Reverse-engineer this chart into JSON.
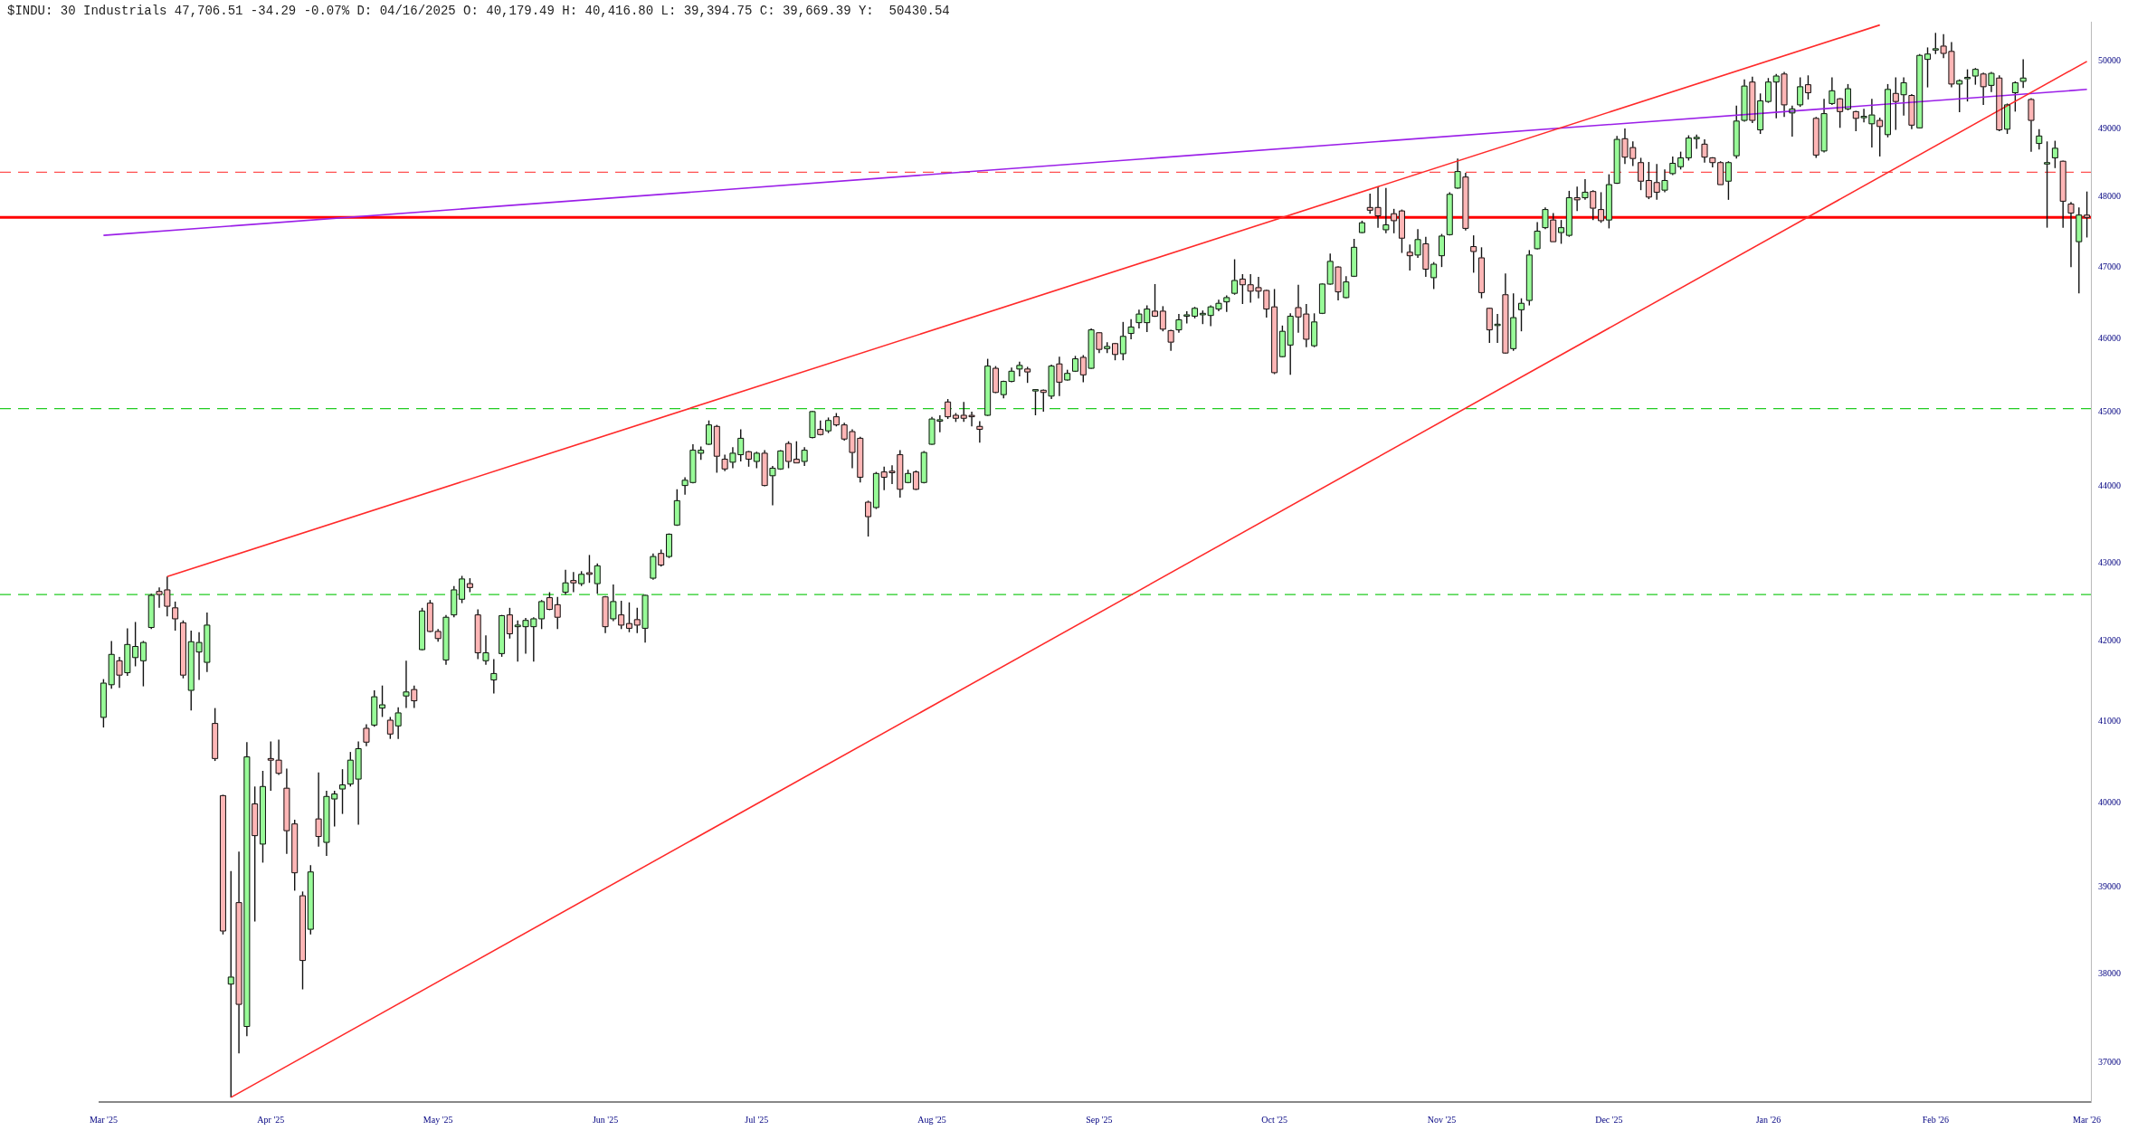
{
  "chart_data": {
    "type": "candlestick",
    "title": "$INDU: 30 Industrials 47,706.51 -34.29 -0.07% D: 04/16/2025 O: 40,179.49 H: 40,416.80 L: 39,394.75 C: 39,669.39 Y:  50430.54",
    "log": true,
    "ylim": [
      36560,
      50600
    ],
    "yticks": [
      37000,
      38000,
      39000,
      40000,
      41000,
      42000,
      43000,
      44000,
      45000,
      46000,
      47000,
      48000,
      49000,
      50000
    ],
    "categories": [
      "Mar '25",
      null,
      null,
      null,
      null,
      null,
      null,
      null,
      null,
      null,
      null,
      null,
      null,
      null,
      null,
      null,
      null,
      null,
      null,
      null,
      null,
      "Apr '25",
      null,
      null,
      null,
      null,
      null,
      null,
      null,
      null,
      null,
      null,
      null,
      null,
      null,
      null,
      null,
      null,
      null,
      null,
      null,
      null,
      "May '25",
      null,
      null,
      null,
      null,
      null,
      null,
      null,
      null,
      null,
      null,
      null,
      null,
      null,
      null,
      null,
      null,
      null,
      null,
      null,
      null,
      "Jun '25",
      null,
      null,
      null,
      null,
      null,
      null,
      null,
      null,
      null,
      null,
      null,
      null,
      null,
      null,
      null,
      null,
      null,
      null,
      "Jul '25",
      null,
      null,
      null,
      null,
      null,
      null,
      null,
      null,
      null,
      null,
      null,
      null,
      null,
      null,
      null,
      null,
      null,
      null,
      null,
      null,
      null,
      "Aug '25",
      null,
      null,
      null,
      null,
      null,
      null,
      null,
      null,
      null,
      null,
      null,
      null,
      null,
      null,
      null,
      null,
      null,
      null,
      null,
      null,
      "Sep '25",
      null,
      null,
      null,
      null,
      null,
      null,
      null,
      null,
      null,
      null,
      null,
      null,
      null,
      null,
      null,
      null,
      null,
      null,
      null,
      null,
      null,
      "Oct '25",
      null,
      null,
      null,
      null,
      null,
      null,
      null,
      null,
      null,
      null,
      null,
      null,
      null,
      null,
      null,
      null,
      null,
      null,
      null,
      null,
      "Nov '25",
      null,
      null,
      null,
      null,
      null,
      null,
      null,
      null,
      null,
      null,
      null,
      null,
      null,
      null,
      null,
      null,
      null,
      null,
      null,
      null,
      "Dec '25",
      null,
      null,
      null,
      null,
      null,
      null,
      null,
      null,
      null,
      null,
      null,
      null,
      null,
      null,
      null,
      null,
      null,
      null,
      null,
      "Jan '26",
      null,
      null,
      null,
      null,
      null,
      null,
      null,
      null,
      null,
      null,
      null,
      null,
      null,
      null,
      null,
      null,
      null,
      null,
      null,
      null,
      "Feb '26",
      null,
      null,
      null,
      null,
      null,
      null,
      null,
      null,
      null,
      null,
      null,
      null,
      null,
      null,
      null,
      null,
      null,
      null,
      "Mar '26"
    ],
    "ohlc": [
      [
        41045,
        41520,
        40920,
        41470
      ],
      [
        41450,
        42000,
        41400,
        41830
      ],
      [
        41750,
        41800,
        41410,
        41570
      ],
      [
        41600,
        42160,
        41560,
        41955
      ],
      [
        41790,
        42240,
        41680,
        41930
      ],
      [
        41750,
        42000,
        41430,
        41980
      ],
      [
        42170,
        42600,
        42150,
        42580
      ],
      [
        42630,
        42680,
        42420,
        42590
      ],
      [
        42650,
        42820,
        42310,
        42440
      ],
      [
        42420,
        42500,
        42130,
        42280
      ],
      [
        42230,
        42260,
        41530,
        41570
      ],
      [
        41380,
        42130,
        41130,
        41990
      ],
      [
        41860,
        42110,
        41510,
        41980
      ],
      [
        41730,
        42360,
        41610,
        42200
      ],
      [
        40970,
        41160,
        40510,
        40540
      ],
      [
        40090,
        40100,
        38450,
        38490
      ],
      [
        37880,
        39190,
        36611,
        37960
      ],
      [
        38820,
        39420,
        37100,
        37650
      ],
      [
        37400,
        40740,
        37290,
        40560
      ],
      [
        39990,
        40200,
        38600,
        39610
      ],
      [
        39510,
        40390,
        39290,
        40200
      ],
      [
        40540,
        40750,
        40150,
        40520
      ],
      [
        40520,
        40770,
        40340,
        40360
      ],
      [
        40179.49,
        40416.8,
        39394.75,
        39669.39
      ],
      [
        39750,
        39800,
        38960,
        39170
      ],
      [
        38900,
        38950,
        37820,
        38150
      ],
      [
        38510,
        39260,
        38450,
        39180
      ],
      [
        39810,
        40370,
        39480,
        39600
      ],
      [
        39530,
        40150,
        39370,
        40080
      ],
      [
        40050,
        40150,
        39720,
        40110
      ],
      [
        40170,
        40410,
        39870,
        40220
      ],
      [
        40230,
        40620,
        40200,
        40520
      ],
      [
        40290,
        40750,
        39740,
        40660
      ],
      [
        40910,
        40960,
        40690,
        40740
      ],
      [
        40950,
        41380,
        40930,
        41300
      ],
      [
        41160,
        41440,
        41050,
        41200
      ],
      [
        41010,
        41050,
        40780,
        40840
      ],
      [
        40940,
        41170,
        40780,
        41100
      ],
      [
        41310,
        41750,
        41160,
        41360
      ],
      [
        41390,
        41440,
        41160,
        41250
      ],
      [
        41890,
        42420,
        41880,
        42380
      ],
      [
        42480,
        42520,
        42110,
        42120
      ],
      [
        42120,
        42150,
        41990,
        42030
      ],
      [
        41760,
        42330,
        41700,
        42300
      ],
      [
        42330,
        42700,
        42300,
        42650
      ],
      [
        42530,
        42830,
        42480,
        42790
      ],
      [
        42730,
        42800,
        42620,
        42680
      ],
      [
        42330,
        42400,
        41770,
        41850
      ],
      [
        41750,
        42070,
        41700,
        41850
      ],
      [
        41510,
        41770,
        41340,
        41590
      ],
      [
        41840,
        42330,
        41800,
        42320
      ],
      [
        42330,
        42420,
        42030,
        42090
      ],
      [
        42180,
        42260,
        41740,
        42200
      ],
      [
        42180,
        42290,
        41840,
        42260
      ],
      [
        42180,
        42300,
        41740,
        42280
      ],
      [
        42280,
        42520,
        42150,
        42500
      ],
      [
        42550,
        42620,
        42390,
        42400
      ],
      [
        42460,
        42560,
        42150,
        42300
      ],
      [
        42620,
        42910,
        42590,
        42740
      ],
      [
        42770,
        42880,
        42620,
        42740
      ],
      [
        42730,
        42890,
        42700,
        42850
      ],
      [
        42870,
        43100,
        42740,
        42850
      ],
      [
        42730,
        42990,
        42600,
        42960
      ],
      [
        42560,
        42570,
        42100,
        42180
      ],
      [
        42280,
        42720,
        42250,
        42500
      ],
      [
        42330,
        42510,
        42150,
        42200
      ],
      [
        42220,
        42490,
        42110,
        42160
      ],
      [
        42270,
        42420,
        42100,
        42200
      ],
      [
        42160,
        42590,
        41980,
        42580
      ],
      [
        42800,
        43120,
        42780,
        43080
      ],
      [
        43120,
        43170,
        42950,
        42970
      ],
      [
        43080,
        43380,
        43060,
        43370
      ],
      [
        43490,
        43960,
        43480,
        43810
      ],
      [
        44010,
        44120,
        43890,
        44080
      ],
      [
        44050,
        44560,
        44040,
        44480
      ],
      [
        44440,
        44530,
        44350,
        44480
      ],
      [
        44560,
        44880,
        44550,
        44820
      ],
      [
        44800,
        44820,
        44180,
        44400
      ],
      [
        44360,
        44420,
        44200,
        44230
      ],
      [
        44320,
        44520,
        44240,
        44440
      ],
      [
        44420,
        44760,
        44330,
        44640
      ],
      [
        44460,
        44470,
        44260,
        44360
      ],
      [
        44330,
        44460,
        44240,
        44440
      ],
      [
        44440,
        44480,
        44000,
        44010
      ],
      [
        44140,
        44270,
        43750,
        44240
      ],
      [
        44230,
        44480,
        44220,
        44470
      ],
      [
        44570,
        44600,
        44240,
        44330
      ],
      [
        44360,
        44600,
        44310,
        44310
      ],
      [
        44330,
        44520,
        44270,
        44480
      ],
      [
        44650,
        45010,
        44640,
        45000
      ],
      [
        44760,
        44880,
        44680,
        44690
      ],
      [
        44740,
        44920,
        44710,
        44880
      ],
      [
        44930,
        44980,
        44800,
        44820
      ],
      [
        44820,
        44850,
        44610,
        44630
      ],
      [
        44730,
        44760,
        44240,
        44450
      ],
      [
        44640,
        44660,
        44050,
        44120
      ],
      [
        43790,
        43810,
        43340,
        43600
      ],
      [
        43720,
        44190,
        43700,
        44170
      ],
      [
        44190,
        44260,
        43950,
        44120
      ],
      [
        44200,
        44280,
        44030,
        44180
      ],
      [
        44420,
        44480,
        43850,
        43960
      ],
      [
        44050,
        44220,
        44040,
        44170
      ],
      [
        44190,
        44210,
        43950,
        43960
      ],
      [
        44050,
        44470,
        44040,
        44450
      ],
      [
        44560,
        44930,
        44550,
        44900
      ],
      [
        44870,
        44950,
        44720,
        44890
      ],
      [
        45130,
        45170,
        44900,
        44930
      ],
      [
        44950,
        44980,
        44860,
        44910
      ],
      [
        44950,
        45130,
        44860,
        44910
      ],
      [
        44940,
        45000,
        44800,
        44930
      ],
      [
        44800,
        44870,
        44580,
        44760
      ],
      [
        44950,
        45720,
        44940,
        45620
      ],
      [
        45590,
        45620,
        45250,
        45260
      ],
      [
        45230,
        45420,
        45180,
        45410
      ],
      [
        45410,
        45600,
        45400,
        45550
      ],
      [
        45580,
        45680,
        45480,
        45630
      ],
      [
        45580,
        45610,
        45390,
        45540
      ],
      [
        45280,
        45300,
        44950,
        45290
      ],
      [
        45290,
        45300,
        45000,
        45260
      ],
      [
        45210,
        45640,
        45170,
        45620
      ],
      [
        45650,
        45750,
        45210,
        45400
      ],
      [
        45430,
        45570,
        45420,
        45520
      ],
      [
        45550,
        45760,
        45540,
        45720
      ],
      [
        45740,
        45770,
        45400,
        45500
      ],
      [
        45590,
        46140,
        45580,
        46120
      ],
      [
        46080,
        46090,
        45800,
        45850
      ],
      [
        45860,
        45950,
        45800,
        45890
      ],
      [
        45930,
        45940,
        45700,
        45780
      ],
      [
        45790,
        46230,
        45700,
        46030
      ],
      [
        46070,
        46270,
        45990,
        46160
      ],
      [
        46220,
        46400,
        46140,
        46340
      ],
      [
        46220,
        46460,
        46090,
        46410
      ],
      [
        46380,
        46760,
        46300,
        46310
      ],
      [
        46380,
        46450,
        46100,
        46130
      ],
      [
        46110,
        46120,
        45830,
        45950
      ],
      [
        46120,
        46340,
        46080,
        46260
      ],
      [
        46310,
        46380,
        46210,
        46320
      ],
      [
        46310,
        46440,
        46280,
        46420
      ],
      [
        46330,
        46390,
        46200,
        46350
      ],
      [
        46320,
        46460,
        46170,
        46440
      ],
      [
        46410,
        46540,
        46380,
        46490
      ],
      [
        46510,
        46600,
        46370,
        46570
      ],
      [
        46630,
        47110,
        46610,
        46810
      ],
      [
        46830,
        46900,
        46480,
        46750
      ],
      [
        46750,
        46900,
        46500,
        46660
      ],
      [
        46710,
        46860,
        46560,
        46660
      ],
      [
        46670,
        46680,
        46290,
        46410
      ],
      [
        46440,
        46690,
        45510,
        45530
      ],
      [
        45750,
        46180,
        45740,
        46100
      ],
      [
        45910,
        46350,
        45500,
        46310
      ],
      [
        46430,
        46750,
        46080,
        46300
      ],
      [
        46340,
        46480,
        45880,
        45990
      ],
      [
        45900,
        46350,
        45880,
        46230
      ],
      [
        46350,
        46770,
        46340,
        46760
      ],
      [
        46760,
        47190,
        46750,
        47080
      ],
      [
        47000,
        47010,
        46530,
        46650
      ],
      [
        46570,
        46870,
        46560,
        46790
      ],
      [
        46870,
        47400,
        46860,
        47280
      ],
      [
        47490,
        47660,
        47480,
        47630
      ],
      [
        47850,
        48050,
        47760,
        47810
      ],
      [
        47850,
        48150,
        47560,
        47730
      ],
      [
        47530,
        48130,
        47480,
        47600
      ],
      [
        47760,
        47830,
        47480,
        47660
      ],
      [
        47800,
        47820,
        47200,
        47410
      ],
      [
        47210,
        47320,
        46950,
        47160
      ],
      [
        47170,
        47540,
        47130,
        47390
      ],
      [
        47330,
        47430,
        46860,
        46970
      ],
      [
        46850,
        47070,
        46690,
        47040
      ],
      [
        47160,
        47470,
        47000,
        47440
      ],
      [
        47460,
        48070,
        47450,
        48040
      ],
      [
        48130,
        48560,
        48120,
        48370
      ],
      [
        48290,
        48350,
        47520,
        47550
      ],
      [
        47290,
        47450,
        46920,
        47220
      ],
      [
        47130,
        47280,
        46560,
        46640
      ],
      [
        46420,
        46430,
        45940,
        46120
      ],
      [
        46180,
        46340,
        45940,
        46190
      ],
      [
        46610,
        46910,
        45790,
        45800
      ],
      [
        45860,
        46630,
        45830,
        46290
      ],
      [
        46400,
        46560,
        46100,
        46490
      ],
      [
        46530,
        47240,
        46460,
        47170
      ],
      [
        47260,
        47640,
        47250,
        47510
      ],
      [
        47560,
        47850,
        47540,
        47820
      ],
      [
        47670,
        47770,
        47360,
        47360
      ],
      [
        47490,
        47670,
        47330,
        47560
      ],
      [
        47450,
        48090,
        47430,
        47990
      ],
      [
        47990,
        48150,
        47800,
        47960
      ],
      [
        47990,
        48260,
        47960,
        48070
      ],
      [
        48080,
        48100,
        47670,
        47840
      ],
      [
        47820,
        48070,
        47630,
        47660
      ],
      [
        47670,
        48330,
        47550,
        48180
      ],
      [
        48200,
        48890,
        48190,
        48840
      ],
      [
        48850,
        49000,
        48480,
        48580
      ],
      [
        48720,
        48810,
        48450,
        48560
      ],
      [
        48500,
        48570,
        48100,
        48230
      ],
      [
        48240,
        48510,
        47970,
        48000
      ],
      [
        48210,
        48480,
        47960,
        48070
      ],
      [
        48100,
        48400,
        48070,
        48240
      ],
      [
        48340,
        48590,
        48320,
        48490
      ],
      [
        48440,
        48660,
        48400,
        48570
      ],
      [
        48570,
        48900,
        48530,
        48860
      ],
      [
        48850,
        48910,
        48700,
        48860
      ],
      [
        48770,
        48840,
        48500,
        48580
      ],
      [
        48570,
        48580,
        48430,
        48500
      ],
      [
        48500,
        48520,
        48180,
        48180
      ],
      [
        48230,
        48520,
        47960,
        48500
      ],
      [
        48600,
        49340,
        48560,
        49110
      ],
      [
        49120,
        49730,
        49100,
        49630
      ],
      [
        49690,
        49770,
        49080,
        49120
      ],
      [
        48980,
        49520,
        48920,
        49410
      ],
      [
        49400,
        49750,
        49380,
        49690
      ],
      [
        49690,
        49810,
        49150,
        49780
      ],
      [
        49810,
        49840,
        49170,
        49350
      ],
      [
        49230,
        49340,
        48880,
        49290
      ],
      [
        49350,
        49760,
        49320,
        49620
      ],
      [
        49650,
        49790,
        49430,
        49530
      ],
      [
        49150,
        49170,
        48570,
        48610
      ],
      [
        48670,
        49440,
        48650,
        49220
      ],
      [
        49370,
        49760,
        49350,
        49560
      ],
      [
        49440,
        49450,
        49010,
        49250
      ],
      [
        49290,
        49660,
        49270,
        49590
      ],
      [
        49250,
        49260,
        48960,
        49150
      ],
      [
        49160,
        49290,
        49090,
        49170
      ],
      [
        49070,
        49440,
        48720,
        49200
      ],
      [
        49120,
        49160,
        48590,
        49030
      ],
      [
        48910,
        49660,
        48870,
        49580
      ],
      [
        49520,
        49760,
        48980,
        49400
      ],
      [
        49500,
        49760,
        49190,
        49680
      ],
      [
        49490,
        49510,
        48990,
        49050
      ],
      [
        49010,
        50110,
        49000,
        50090
      ],
      [
        50030,
        50210,
        49610,
        50110
      ],
      [
        50170,
        50430.54,
        50110,
        50180
      ],
      [
        50230,
        50410,
        50050,
        50120
      ],
      [
        50150,
        50290,
        49610,
        49660
      ],
      [
        49660,
        49730,
        49240,
        49710
      ],
      [
        49740,
        49880,
        49400,
        49750
      ],
      [
        49780,
        49900,
        49650,
        49880
      ],
      [
        49810,
        49830,
        49350,
        49620
      ],
      [
        49640,
        49840,
        49540,
        49820
      ],
      [
        49750,
        49790,
        48960,
        48980
      ],
      [
        48990,
        49370,
        48920,
        49350
      ],
      [
        49530,
        49700,
        49250,
        49680
      ],
      [
        49700,
        50030,
        49600,
        49750
      ],
      [
        49430,
        49450,
        48660,
        49120
      ],
      [
        48780,
        48990,
        48690,
        48890
      ],
      [
        48480,
        48810,
        47560,
        48490
      ],
      [
        48570,
        48820,
        48420,
        48710
      ],
      [
        48520,
        48530,
        47560,
        47940
      ],
      [
        47900,
        47930,
        47000,
        47770
      ],
      [
        47360,
        47850,
        46630,
        47740.8
      ],
      [
        47740,
        48080,
        47420,
        47706.51
      ]
    ],
    "colors": [
      "#98fb98",
      "#98fb98",
      "#ffb6b6",
      "#98fb98",
      "#98fb98",
      "#98fb98",
      "#98fb98",
      "#ffb6b6",
      "#ffb6b6",
      "#ffb6b6",
      "#ffb6b6",
      "#98fb98",
      "#98fb98",
      "#98fb98",
      "#ffb6b6",
      "#ffb6b6",
      "#98fb98",
      "#ffb6b6",
      "#98fb98",
      "#ffb6b6",
      "#98fb98",
      "#ffb6b6",
      "#ffb6b6",
      "#ffb6b6",
      "#ffb6b6",
      "#ffb6b6",
      "#98fb98",
      "#ffb6b6",
      "#98fb98",
      "#98fb98",
      "#98fb98",
      "#98fb98",
      "#98fb98",
      "#ffb6b6",
      "#98fb98",
      "#98fb98",
      "#ffb6b6",
      "#98fb98",
      "#98fb98",
      "#ffb6b6",
      "#98fb98",
      "#ffb6b6",
      "#ffb6b6",
      "#98fb98",
      "#98fb98",
      "#98fb98",
      "#ffb6b6",
      "#ffb6b6",
      "#98fb98",
      "#98fb98",
      "#98fb98",
      "#ffb6b6",
      "#98fb98",
      "#98fb98",
      "#98fb98",
      "#98fb98",
      "#ffb6b6",
      "#ffb6b6",
      "#98fb98",
      "#ffb6b6",
      "#98fb98",
      "#ffb6b6",
      "#98fb98",
      "#ffb6b6",
      "#98fb98",
      "#ffb6b6",
      "#ffb6b6",
      "#ffb6b6",
      "#98fb98",
      "#98fb98",
      "#ffb6b6",
      "#98fb98",
      "#98fb98",
      "#98fb98",
      "#98fb98",
      "#98fb98",
      "#98fb98",
      "#ffb6b6",
      "#ffb6b6",
      "#98fb98",
      "#98fb98",
      "#ffb6b6",
      "#98fb98",
      "#ffb6b6",
      "#98fb98",
      "#98fb98",
      "#ffb6b6",
      "#ffb6b6",
      "#98fb98",
      "#98fb98",
      "#ffb6b6",
      "#98fb98",
      "#ffb6b6",
      "#ffb6b6",
      "#ffb6b6",
      "#ffb6b6",
      "#ffb6b6",
      "#98fb98",
      "#ffb6b6",
      "#ffb6b6",
      "#ffb6b6",
      "#98fb98",
      "#ffb6b6",
      "#98fb98",
      "#98fb98",
      "#98fb98",
      "#ffb6b6",
      "#ffb6b6",
      "#ffb6b6",
      "#ffb6b6",
      "#ffb6b6",
      "#98fb98",
      "#ffb6b6",
      "#98fb98",
      "#98fb98",
      "#98fb98",
      "#ffb6b6",
      "#98fb98",
      "#ffb6b6",
      "#98fb98",
      "#ffb6b6",
      "#98fb98",
      "#98fb98",
      "#ffb6b6",
      "#98fb98",
      "#ffb6b6",
      "#98fb98",
      "#ffb6b6",
      "#98fb98",
      "#98fb98",
      "#98fb98",
      "#98fb98",
      "#ffb6b6",
      "#ffb6b6",
      "#ffb6b6",
      "#98fb98",
      "#98fb98",
      "#98fb98",
      "#98fb98",
      "#98fb98",
      "#98fb98",
      "#98fb98",
      "#98fb98",
      "#ffb6b6",
      "#ffb6b6",
      "#ffb6b6",
      "#ffb6b6",
      "#ffb6b6",
      "#98fb98",
      "#98fb98",
      "#ffb6b6",
      "#ffb6b6",
      "#98fb98",
      "#98fb98",
      "#98fb98",
      "#ffb6b6",
      "#98fb98",
      "#98fb98",
      "#98fb98",
      "#ffb6b6",
      "#ffb6b6",
      "#98fb98",
      "#ffb6b6",
      "#ffb6b6",
      "#ffb6b6",
      "#98fb98",
      "#ffb6b6",
      "#98fb98",
      "#98fb98",
      "#98fb98",
      "#98fb98",
      "#ffb6b6",
      "#ffb6b6",
      "#ffb6b6",
      "#ffb6b6",
      "#98fb98",
      "#ffb6b6",
      "#98fb98",
      "#98fb98",
      "#98fb98",
      "#98fb98",
      "#98fb98",
      "#ffb6b6",
      "#98fb98",
      "#98fb98",
      "#ffb6b6",
      "#98fb98",
      "#ffb6b6",
      "#ffb6b6",
      "#98fb98",
      "#98fb98",
      "#ffb6b6",
      "#ffb6b6",
      "#ffb6b6",
      "#ffb6b6",
      "#ffb6b6",
      "#98fb98",
      "#98fb98",
      "#98fb98",
      "#98fb98",
      "#98fb98",
      "#ffb6b6",
      "#ffb6b6",
      "#ffb6b6",
      "#98fb98",
      "#98fb98",
      "#98fb98",
      "#ffb6b6",
      "#98fb98",
      "#98fb98",
      "#98fb98",
      "#ffb6b6",
      "#98fb98",
      "#98fb98",
      "#ffb6b6",
      "#ffb6b6",
      "#98fb98",
      "#98fb98",
      "#ffb6b6",
      "#98fb98",
      "#ffb6b6",
      "#98fb98",
      "#98fb98",
      "#ffb6b6",
      "#98fb98",
      "#ffb6b6",
      "#98fb98",
      "#ffb6b6",
      "#98fb98",
      "#98fb98",
      "#98fb98",
      "#ffb6b6",
      "#ffb6b6",
      "#98fb98",
      "#98fb98",
      "#98fb98",
      "#ffb6b6",
      "#98fb98",
      "#ffb6b6",
      "#98fb98",
      "#98fb98",
      "#98fb98",
      "#ffb6b6",
      "#98fb98",
      "#98fb98",
      "#98fb98",
      "#ffb6b6",
      "#ffb6b6",
      "#98fb98",
      "#ffb6b6"
    ],
    "series": [
      {
        "type": "line",
        "color": "#ff2a2a",
        "values": [
          null,
          null,
          null,
          null,
          null,
          null,
          null,
          null,
          42820,
          null,
          null,
          null,
          null,
          null,
          null,
          null,
          null,
          null,
          null,
          null,
          null,
          null,
          null,
          null,
          null,
          null,
          null,
          null,
          null,
          null,
          null,
          null,
          null,
          null,
          null,
          null,
          null,
          null,
          null,
          null,
          null,
          null,
          null,
          null,
          null,
          null,
          null,
          null,
          null,
          null,
          null,
          null,
          null,
          null,
          null,
          null,
          null,
          null,
          null,
          null,
          null,
          null,
          null,
          null,
          null,
          null,
          null,
          null,
          null,
          null,
          null,
          null,
          null,
          null,
          null,
          null,
          null,
          null,
          null,
          null,
          null,
          null,
          null,
          null,
          null,
          null,
          null,
          null,
          null,
          null,
          null,
          null,
          null,
          null,
          null,
          null,
          null,
          null,
          null,
          null,
          null,
          null,
          null,
          null,
          null,
          null,
          null,
          null,
          null,
          null,
          null,
          null,
          null,
          null,
          null,
          null,
          null,
          null,
          null,
          null,
          null,
          null,
          null,
          null,
          null,
          null,
          null,
          null,
          null,
          null,
          null,
          null,
          null,
          null,
          null,
          null,
          null,
          null,
          null,
          null,
          null,
          null,
          null,
          null,
          null,
          null,
          null,
          null,
          null,
          null,
          null,
          null,
          null,
          null,
          null,
          null,
          null,
          null,
          null,
          null,
          null,
          null,
          null,
          null,
          null,
          null,
          null,
          null,
          null,
          null,
          null,
          null,
          null,
          null,
          null,
          null,
          null,
          null,
          null,
          null,
          null,
          null,
          null,
          null,
          null,
          null,
          null,
          null,
          null,
          null,
          null,
          null,
          null,
          null,
          null,
          null,
          null,
          null,
          null,
          null,
          null,
          null,
          null,
          null,
          null,
          null,
          null,
          null,
          null,
          null,
          null,
          null,
          null,
          null,
          null,
          null,
          null,
          null,
          null,
          null,
          null,
          null,
          null,
          50550,
          null,
          null,
          null,
          null,
          null,
          null,
          null,
          null,
          null,
          null,
          null,
          null,
          null,
          null,
          null,
          null,
          null,
          null,
          null,
          null,
          null,
          null,
          null,
          null,
          null,
          null
        ]
      },
      {
        "type": "line",
        "color": "#ff2a2a",
        "values": [
          null,
          null,
          null,
          null,
          null,
          null,
          null,
          null,
          null,
          null,
          null,
          null,
          null,
          null,
          null,
          null,
          36611,
          null,
          null,
          null,
          null,
          null,
          null,
          null,
          null,
          null,
          null,
          null,
          null,
          null,
          null,
          null,
          null,
          null,
          null,
          null,
          null,
          null,
          null,
          null,
          null,
          null,
          null,
          null,
          null,
          null,
          null,
          null,
          null,
          null,
          null,
          null,
          null,
          null,
          null,
          null,
          null,
          null,
          null,
          null,
          null,
          null,
          null,
          null,
          null,
          null,
          null,
          null,
          null,
          null,
          null,
          null,
          null,
          null,
          null,
          null,
          null,
          null,
          null,
          null,
          null,
          null,
          null,
          null,
          null,
          null,
          null,
          null,
          null,
          null,
          null,
          null,
          null,
          null,
          null,
          null,
          null,
          null,
          null,
          null,
          null,
          null,
          null,
          null,
          null,
          null,
          null,
          null,
          null,
          null,
          null,
          null,
          null,
          null,
          null,
          null,
          null,
          null,
          null,
          null,
          null,
          null,
          null,
          null,
          null,
          null,
          null,
          null,
          null,
          null,
          null,
          null,
          null,
          null,
          null,
          null,
          null,
          null,
          null,
          null,
          null,
          null,
          null,
          null,
          null,
          null,
          null,
          null,
          null,
          null,
          null,
          null,
          null,
          null,
          null,
          null,
          null,
          null,
          null,
          null,
          null,
          null,
          null,
          null,
          null,
          null,
          null,
          null,
          null,
          null,
          null,
          null,
          null,
          null,
          null,
          null,
          null,
          null,
          null,
          null,
          null,
          null,
          null,
          null,
          null,
          null,
          null,
          null,
          null,
          null,
          null,
          null,
          null,
          null,
          null,
          null,
          null,
          null,
          null,
          null,
          null,
          null,
          null,
          null,
          null,
          null,
          null,
          null,
          null,
          null,
          null,
          null,
          null,
          null,
          null,
          null,
          null,
          null,
          null,
          null,
          null,
          null,
          null,
          null,
          null,
          null,
          null,
          null,
          null,
          null,
          null,
          null,
          null,
          null,
          null,
          null,
          null,
          null,
          null,
          null,
          null,
          null,
          null,
          null,
          null,
          null,
          null,
          null,
          null,
          50000
        ]
      },
      {
        "type": "line",
        "color": "#9b1fe8",
        "values": [
          47450,
          null,
          null,
          null,
          null,
          null,
          null,
          null,
          null,
          null,
          null,
          null,
          null,
          null,
          null,
          null,
          null,
          null,
          null,
          null,
          null,
          null,
          null,
          null,
          null,
          null,
          null,
          null,
          null,
          null,
          null,
          null,
          null,
          null,
          null,
          null,
          null,
          null,
          null,
          null,
          null,
          null,
          null,
          null,
          null,
          null,
          null,
          null,
          null,
          null,
          null,
          null,
          null,
          null,
          null,
          null,
          null,
          null,
          null,
          null,
          null,
          null,
          null,
          null,
          null,
          null,
          null,
          null,
          null,
          null,
          null,
          null,
          null,
          null,
          null,
          null,
          null,
          null,
          null,
          null,
          null,
          null,
          null,
          null,
          null,
          null,
          null,
          null,
          null,
          null,
          null,
          null,
          null,
          null,
          null,
          null,
          null,
          null,
          null,
          null,
          null,
          null,
          null,
          null,
          null,
          null,
          null,
          null,
          null,
          null,
          null,
          null,
          null,
          null,
          null,
          null,
          null,
          null,
          null,
          null,
          null,
          null,
          null,
          null,
          null,
          null,
          null,
          null,
          null,
          null,
          null,
          null,
          null,
          null,
          null,
          null,
          null,
          null,
          null,
          null,
          null,
          null,
          null,
          null,
          null,
          null,
          null,
          null,
          null,
          null,
          null,
          null,
          null,
          null,
          null,
          null,
          null,
          null,
          null,
          null,
          null,
          null,
          null,
          null,
          null,
          null,
          null,
          null,
          null,
          null,
          null,
          null,
          null,
          null,
          null,
          null,
          null,
          null,
          null,
          null,
          null,
          null,
          null,
          null,
          null,
          null,
          null,
          null,
          null,
          null,
          null,
          null,
          null,
          null,
          null,
          null,
          null,
          null,
          null,
          null,
          null,
          null,
          null,
          null,
          null,
          null,
          null,
          null,
          null,
          null,
          null,
          null,
          null,
          null,
          null,
          null,
          null,
          null,
          null,
          null,
          null,
          null,
          null,
          null,
          null,
          null,
          null,
          null,
          null,
          null,
          null,
          null,
          null,
          null,
          null,
          null,
          null,
          null,
          null,
          null,
          null,
          null,
          null,
          null,
          null,
          null,
          null,
          null,
          null,
          49580
        ]
      }
    ],
    "ref_lines": [
      {
        "axis": "y",
        "value": 45040,
        "color": "#22cc22",
        "line_style": "dashed"
      },
      {
        "axis": "y",
        "value": 42590,
        "color": "#22cc22",
        "line_style": "dashed"
      },
      {
        "axis": "y",
        "value": 48360,
        "color": "#ff5050",
        "line_style": "dashed"
      },
      {
        "axis": "y",
        "value": 47706.51,
        "color": "#ff0000",
        "line_style": "solid"
      }
    ]
  }
}
